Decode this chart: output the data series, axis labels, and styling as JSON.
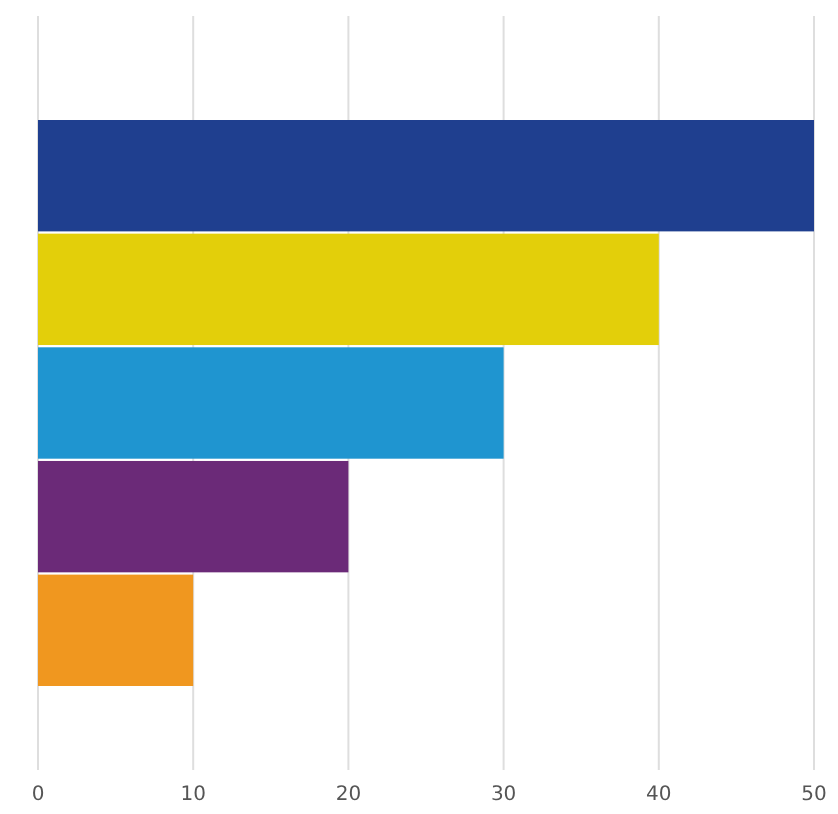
{
  "chart_data": {
    "type": "bar",
    "orientation": "horizontal",
    "categories": [
      null,
      null,
      null,
      null,
      null
    ],
    "values": [
      50,
      40,
      30,
      20,
      10
    ],
    "colors": [
      "#1f3f8f",
      "#e3cf0a",
      "#1f95d0",
      "#6b2a78",
      "#f0971f"
    ],
    "xlim": [
      0,
      50
    ],
    "xticks": [
      0,
      10,
      20,
      30,
      40,
      50
    ],
    "grid": "x"
  }
}
